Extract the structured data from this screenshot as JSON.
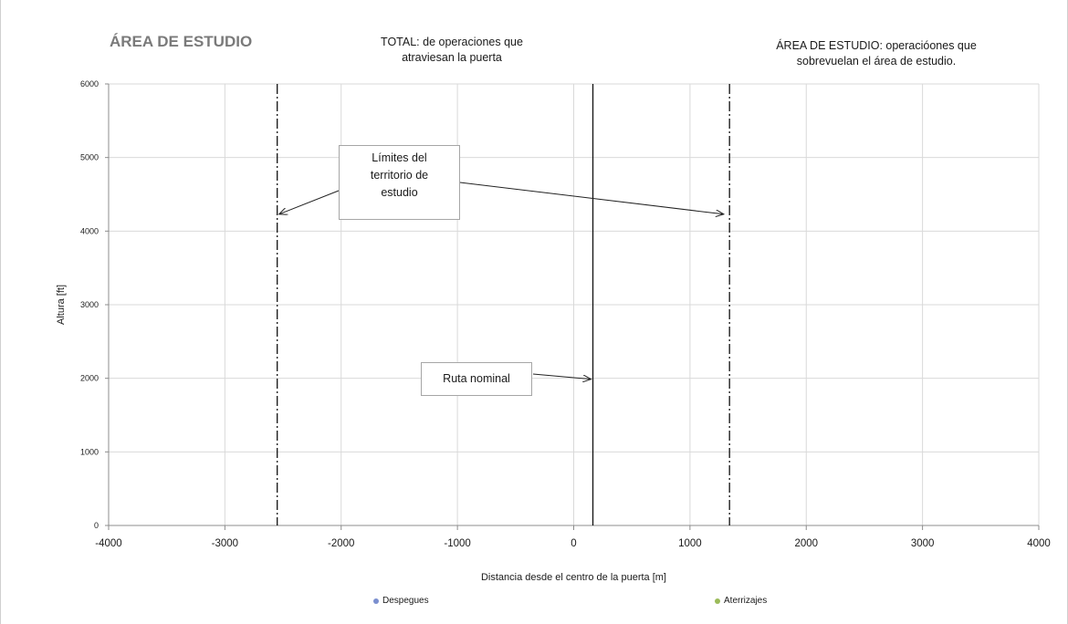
{
  "header": {
    "title": "ÁREA DE ESTUDIO",
    "total_line1": "TOTAL: de operaciones que",
    "total_line2": "atraviesan la puerta",
    "area_line1": "ÁREA DE ESTUDIO: operacióones que",
    "area_line2": "sobrevuelan el área de estudio."
  },
  "callouts": {
    "limits_line1": "Límites del",
    "limits_line2": "territorio de",
    "limits_line3": "estudio",
    "route": "Ruta nominal"
  },
  "legend": {
    "items": [
      {
        "label": "Despegues",
        "color": "#7b8fcf"
      },
      {
        "label": "Aterrizajes",
        "color": "#9bbb59"
      }
    ]
  },
  "chart_data": {
    "type": "scatter",
    "title": "ÁREA DE ESTUDIO",
    "xlabel": "Distancia desde el centro de la puerta [m]",
    "ylabel": "Altura [ft]",
    "xlim": [
      -4000,
      4000
    ],
    "ylim": [
      0,
      6000
    ],
    "x_ticks": [
      -4000,
      -3000,
      -2000,
      -1000,
      0,
      1000,
      2000,
      3000,
      4000
    ],
    "y_ticks": [
      0,
      1000,
      2000,
      3000,
      4000,
      5000,
      6000
    ],
    "grid": true,
    "series": [
      {
        "name": "Despegues",
        "color": "#7b8fcf",
        "points": []
      },
      {
        "name": "Aterrizajes",
        "color": "#9bbb59",
        "points": []
      }
    ],
    "reference_lines": [
      {
        "x": -2550,
        "style": "dash-dot"
      },
      {
        "x": 1340,
        "style": "dash-dot"
      },
      {
        "x": 165,
        "style": "solid"
      }
    ],
    "annotations": [
      {
        "text": "Límites del territorio de estudio",
        "targets": [
          [
            -2550,
            4230
          ],
          [
            1290,
            4230
          ]
        ]
      },
      {
        "text": "Ruta nominal",
        "targets": [
          [
            165,
            2050
          ]
        ]
      }
    ],
    "legend_position": "bottom"
  }
}
